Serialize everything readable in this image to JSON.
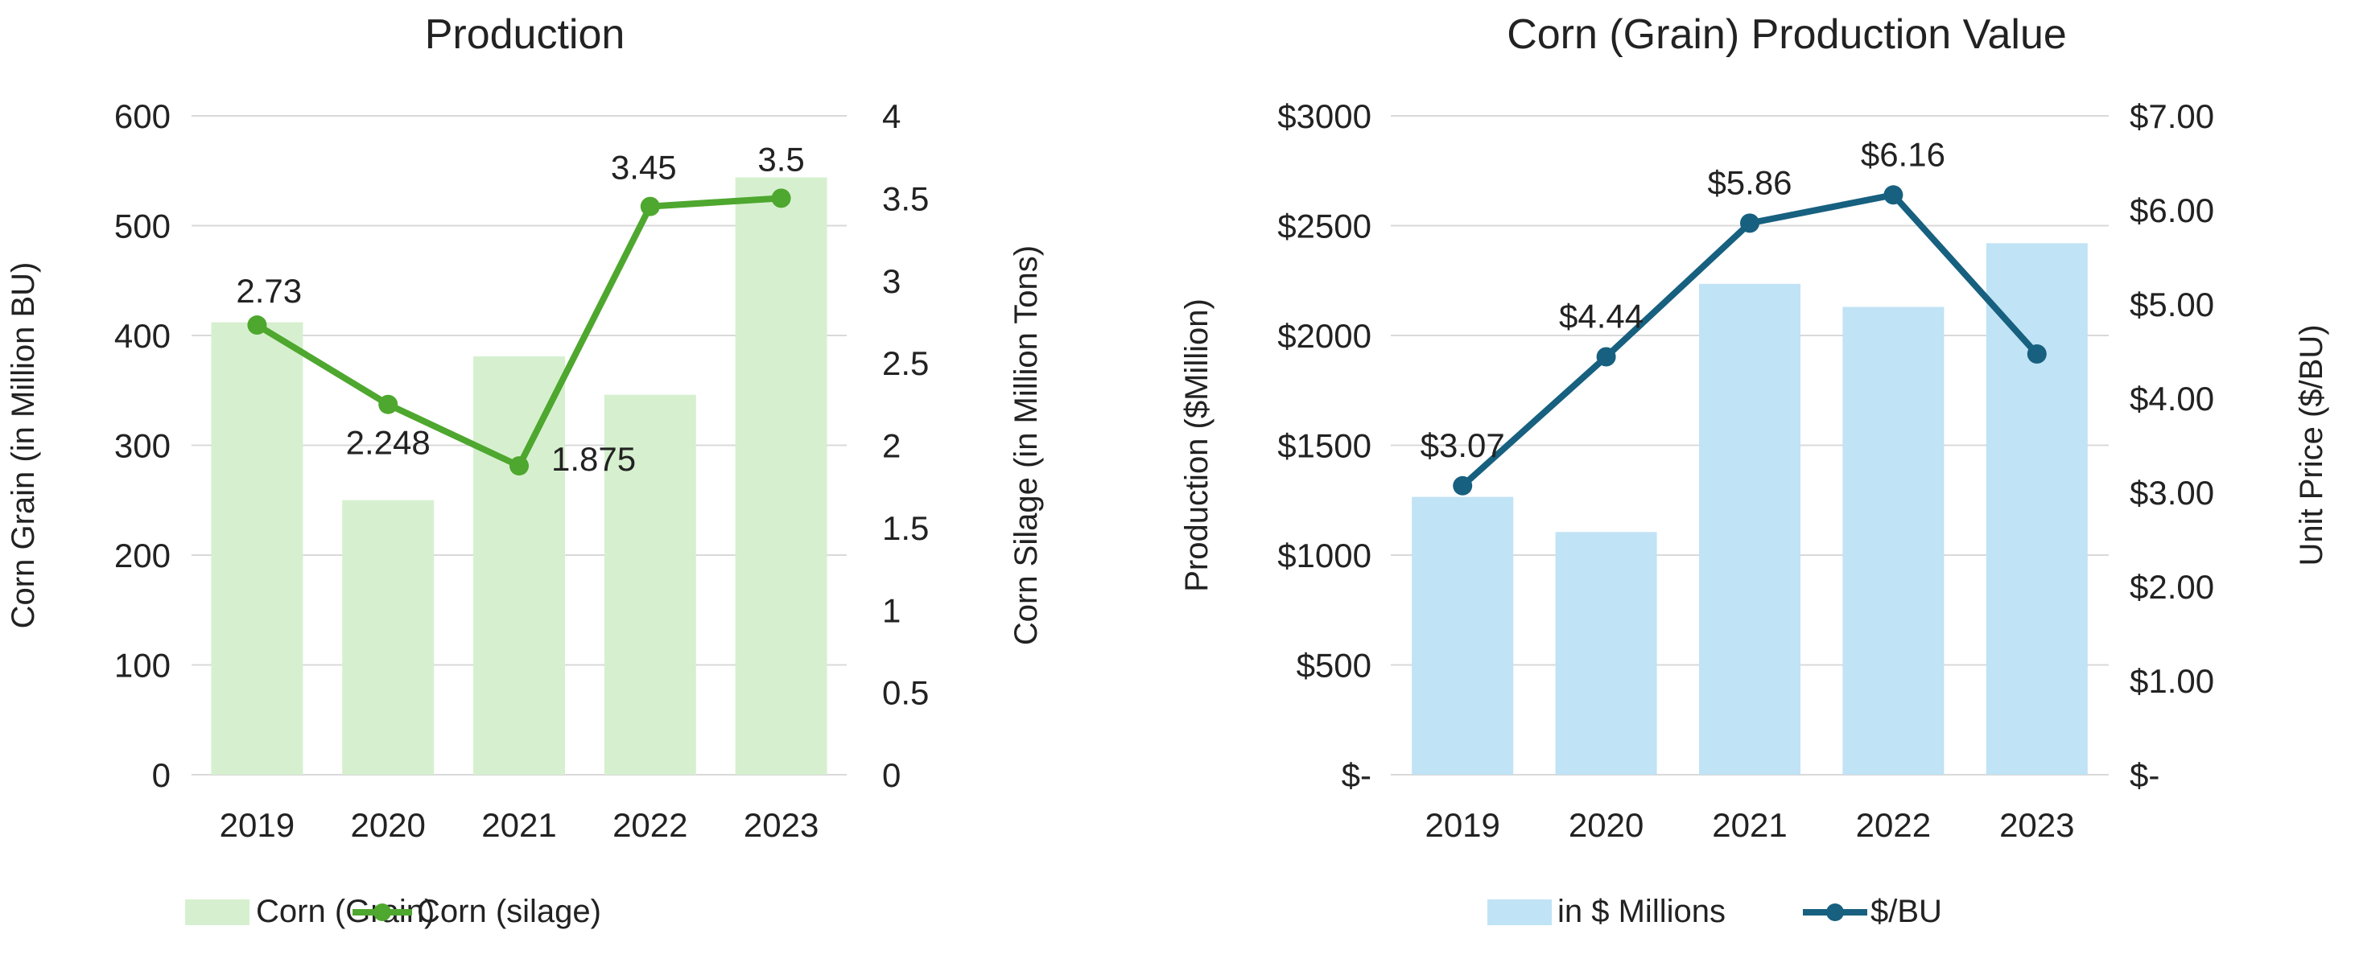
{
  "chart_data": [
    {
      "type": "bar+line",
      "title": "Production",
      "categories": [
        "2019",
        "2020",
        "2021",
        "2022",
        "2023"
      ],
      "bar_series": {
        "name": "Corn (Grain)",
        "values": [
          412,
          250,
          381,
          346,
          544
        ],
        "color": "#d6f0cf",
        "axis": "left"
      },
      "line_series": {
        "name": "Corn (silage)",
        "values": [
          2.73,
          2.248,
          1.875,
          3.45,
          3.5
        ],
        "data_labels": [
          "2.73",
          "2.248",
          "1.875",
          "3.45",
          "3.5"
        ],
        "color": "#4ea72e",
        "axis": "right"
      },
      "ylabel": "Corn Grain (in Million BU)",
      "ylabel2": "Corn Silage (in Million Tons)",
      "ylim": [
        0,
        600
      ],
      "ylim2": [
        0,
        4
      ],
      "yticks": [
        "0",
        "100",
        "200",
        "300",
        "400",
        "500",
        "600"
      ],
      "yticks2": [
        "0",
        "0.5",
        "1",
        "1.5",
        "2",
        "2.5",
        "3",
        "3.5",
        "4"
      ],
      "grid": true,
      "legend": "bottom"
    },
    {
      "type": "bar+line",
      "title": "Corn (Grain) Production Value",
      "categories": [
        "2019",
        "2020",
        "2021",
        "2022",
        "2023"
      ],
      "bar_series": {
        "name": "in $ Millions",
        "values": [
          1265,
          1105,
          2235,
          2130,
          2420
        ],
        "color": "#c0e3f5",
        "axis": "left"
      },
      "line_series": {
        "name": "$/BU",
        "values": [
          3.07,
          4.44,
          5.86,
          6.16,
          4.47
        ],
        "data_labels": [
          "$3.07",
          "$4.44",
          "$5.86",
          "$6.16",
          ""
        ],
        "color": "#17607f",
        "axis": "right"
      },
      "ylabel": "Production ($Million)",
      "ylabel2": "Unit Price ($/BU)",
      "ylim": [
        0,
        3000
      ],
      "ylim2": [
        0,
        7
      ],
      "yticks": [
        "$-",
        "$500",
        "$1000",
        "$1500",
        "$2000",
        "$2500",
        "$3000"
      ],
      "yticks2": [
        "$-",
        "$1.00",
        "$2.00",
        "$3.00",
        "$4.00",
        "$5.00",
        "$6.00",
        "$7.00"
      ],
      "grid": true,
      "legend": "bottom"
    }
  ]
}
